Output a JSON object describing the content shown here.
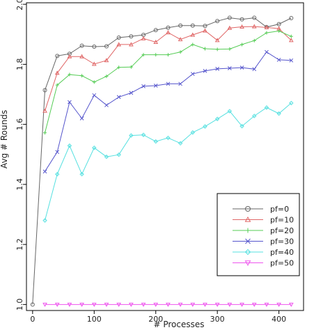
{
  "chart_data": {
    "type": "line",
    "title": "",
    "xlabel": "# Processes",
    "ylabel": "Avg # Rounds",
    "xlim": [
      -10,
      440
    ],
    "ylim": [
      0.98,
      2.005
    ],
    "xticks": [
      0,
      100,
      200,
      300,
      400
    ],
    "yticks": [
      1.0,
      1.2,
      1.4,
      1.6,
      1.8,
      2.0
    ],
    "x": [
      20,
      40,
      60,
      80,
      100,
      120,
      140,
      160,
      180,
      200,
      220,
      240,
      260,
      280,
      300,
      320,
      340,
      360,
      380,
      400
    ],
    "grid": false,
    "legend_position": "bottom-right",
    "series": [
      {
        "name": "pf=0",
        "color": "#666666",
        "marker": "circle",
        "values": [
          1.714,
          1.828,
          1.835,
          1.862,
          1.859,
          1.86,
          1.889,
          1.893,
          1.898,
          1.914,
          1.922,
          1.929,
          1.929,
          1.928,
          1.944,
          1.955,
          1.95,
          1.955,
          1.924,
          1.934
        ]
      },
      {
        "name": "pf=10",
        "color": "#e06666",
        "marker": "triangle-up",
        "values": [
          1.645,
          1.771,
          1.826,
          1.826,
          1.801,
          1.813,
          1.866,
          1.866,
          1.886,
          1.874,
          1.906,
          1.883,
          1.898,
          1.912,
          1.88,
          1.921,
          1.925,
          1.926,
          1.923,
          1.919
        ]
      },
      {
        "name": "pf=20",
        "color": "#55cc55",
        "marker": "plus",
        "values": [
          1.572,
          1.731,
          1.766,
          1.762,
          1.741,
          1.76,
          1.79,
          1.791,
          1.832,
          1.832,
          1.832,
          1.841,
          1.866,
          1.852,
          1.85,
          1.851,
          1.866,
          1.879,
          1.905,
          1.911
        ]
      },
      {
        "name": "pf=30",
        "color": "#5555cc",
        "marker": "x",
        "values": [
          1.443,
          1.508,
          1.674,
          1.62,
          1.697,
          1.664,
          1.691,
          1.705,
          1.727,
          1.729,
          1.735,
          1.735,
          1.768,
          1.778,
          1.785,
          1.787,
          1.789,
          1.784,
          1.841,
          1.815
        ]
      },
      {
        "name": "pf=40",
        "color": "#55e0e0",
        "marker": "diamond",
        "values": [
          1.28,
          1.434,
          1.529,
          1.434,
          1.522,
          1.492,
          1.499,
          1.563,
          1.565,
          1.543,
          1.555,
          1.537,
          1.573,
          1.593,
          1.618,
          1.644,
          1.594,
          1.628,
          1.656,
          1.636
        ]
      },
      {
        "name": "pf=50",
        "color": "#ee55ee",
        "marker": "triangle-down",
        "values": [
          1.0,
          1.0,
          1.0,
          1.0,
          1.0,
          1.0,
          1.0,
          1.0,
          1.0,
          1.0,
          1.0,
          1.0,
          1.0,
          1.0,
          1.0,
          1.0,
          1.0,
          1.0,
          1.0,
          1.0
        ]
      }
    ],
    "extra_points": {
      "pf=0": {
        "x": [
          0,
          420
        ],
        "y": [
          1.0,
          1.954
        ]
      },
      "pf=10": {
        "x": [
          420
        ],
        "y": [
          1.88
        ]
      },
      "pf=20": {
        "x": [
          420
        ],
        "y": [
          1.893
        ]
      },
      "pf=30": {
        "x": [
          420
        ],
        "y": [
          1.813
        ]
      },
      "pf=40": {
        "x": [
          420
        ],
        "y": [
          1.671
        ]
      },
      "pf=50": {
        "x": [
          420
        ],
        "y": [
          1.0
        ]
      }
    }
  }
}
